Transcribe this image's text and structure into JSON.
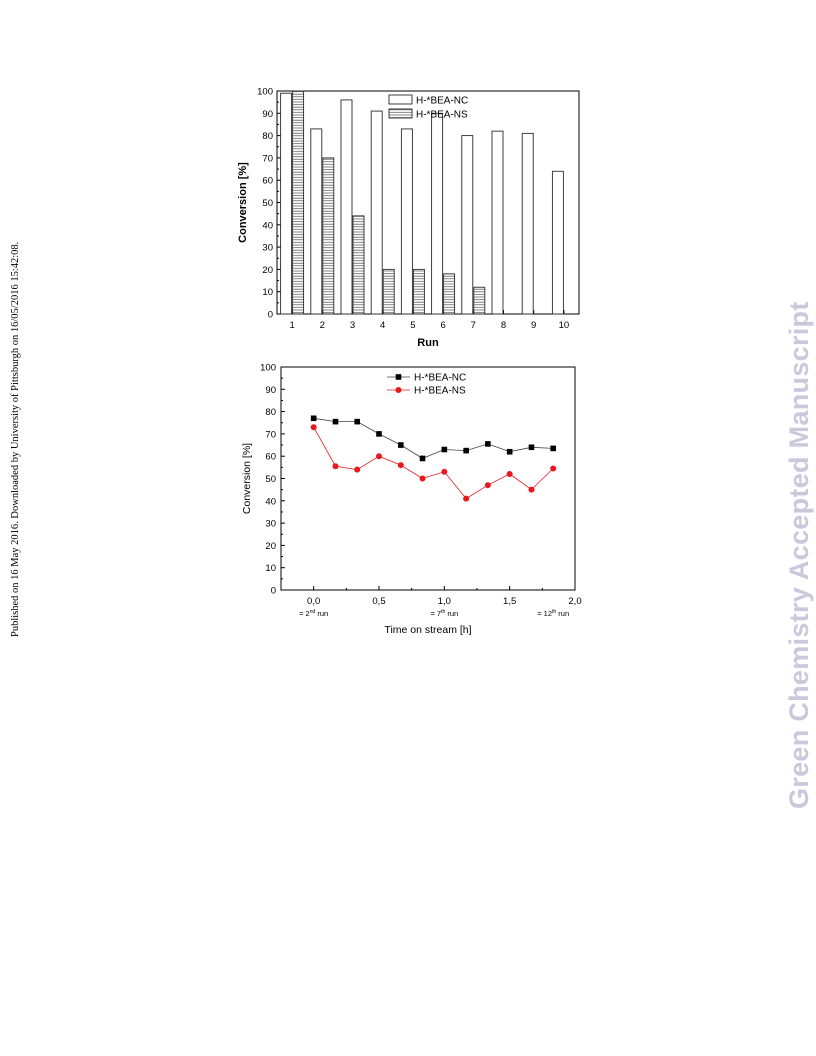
{
  "page": {
    "side_note": "Published on 16 May 2016. Downloaded by University of Pittsburgh on 16/05/2016 15:42:08.",
    "watermark": "Green Chemistry Accepted Manuscript"
  },
  "chart_data": [
    {
      "type": "bar",
      "categories": [
        "1",
        "2",
        "3",
        "4",
        "5",
        "6",
        "7",
        "8",
        "9",
        "10"
      ],
      "series": [
        {
          "name": "H-*BEA-NC",
          "values": [
            99,
            83,
            96,
            91,
            83,
            90,
            80,
            82,
            81,
            64
          ],
          "color": "#ffffff",
          "pattern": "none"
        },
        {
          "name": "H-*BEA-NS",
          "values": [
            100,
            70,
            44,
            20,
            20,
            18,
            12,
            null,
            null,
            null
          ],
          "color": "#ffffff",
          "pattern": "horizontal-lines"
        }
      ],
      "xlabel": "Run",
      "ylabel": "Conversion [%]",
      "ylim": [
        0,
        100
      ],
      "yticks": [
        "0",
        "10",
        "20",
        "30",
        "40",
        "50",
        "60",
        "70",
        "80",
        "90",
        "100"
      ],
      "grid": false,
      "legend": "top-center"
    },
    {
      "type": "line",
      "series": [
        {
          "name": "H-*BEA-NC",
          "marker": "square",
          "color": "#000000",
          "x": [
            0.0,
            0.167,
            0.333,
            0.5,
            0.667,
            0.833,
            1.0,
            1.167,
            1.333,
            1.5,
            1.667,
            1.833
          ],
          "y": [
            77,
            75.5,
            75.5,
            70,
            65,
            59,
            63,
            62.5,
            65.5,
            62,
            64,
            63.5
          ]
        },
        {
          "name": "H-*BEA-NS",
          "marker": "circle",
          "color": "#e8191e",
          "x": [
            0.0,
            0.167,
            0.333,
            0.5,
            0.667,
            0.833,
            1.0,
            1.167,
            1.333,
            1.5,
            1.667,
            1.833
          ],
          "y": [
            73,
            55.5,
            54,
            60,
            56,
            50,
            53,
            41,
            47,
            52,
            45,
            54.5
          ]
        }
      ],
      "xlabel": "Time on stream [h]",
      "ylabel": "Conversion [%]",
      "xlim": [
        -0.25,
        2.0
      ],
      "ylim": [
        0,
        100
      ],
      "xticks": [
        {
          "value": 0.0,
          "label": "0,0"
        },
        {
          "value": 0.5,
          "label": "0,5"
        },
        {
          "value": 1.0,
          "label": "1,0"
        },
        {
          "value": 1.5,
          "label": "1,5"
        },
        {
          "value": 2.0,
          "label": "2,0"
        }
      ],
      "yticks": [
        "0",
        "10",
        "20",
        "30",
        "40",
        "50",
        "60",
        "70",
        "80",
        "90",
        "100"
      ],
      "annotations": [
        {
          "x": 0.0,
          "prefix": "= 2",
          "sup": "nd",
          "suffix": " run"
        },
        {
          "x": 1.0,
          "prefix": "= 7",
          "sup": "th",
          "suffix": " run"
        },
        {
          "x": 1.833,
          "prefix": "= 12",
          "sup": "th",
          "suffix": " run"
        }
      ],
      "grid": false,
      "legend": "top-center"
    }
  ]
}
